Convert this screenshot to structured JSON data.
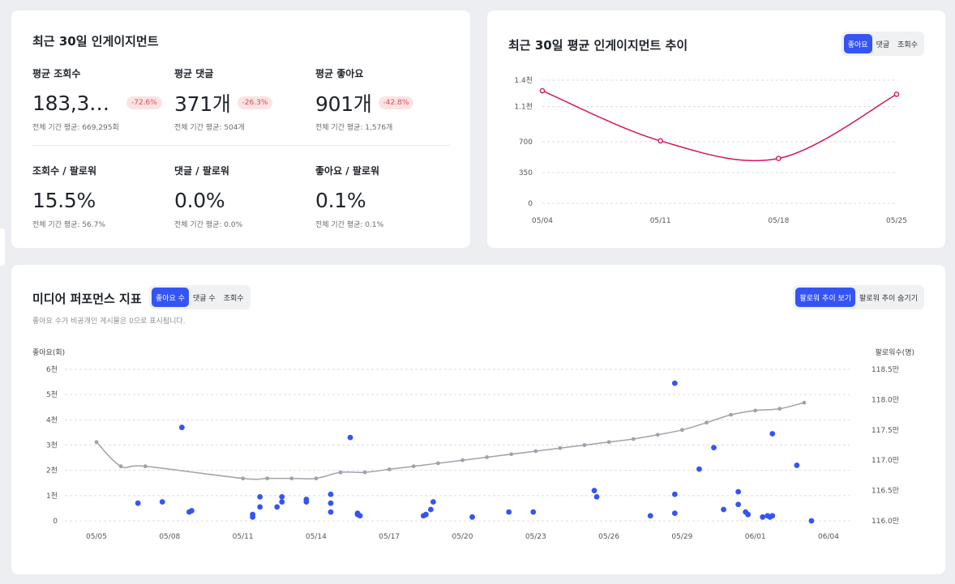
{
  "summary": {
    "title": "최근 30일 인게이지먼트",
    "metrics": [
      {
        "label": "평균 조회수",
        "value": "183,33…",
        "badge": "-72.6%",
        "sub": "전체 기간 평균: 669,295회"
      },
      {
        "label": "평균 댓글",
        "value": "371개",
        "badge": "-26.3%",
        "sub": "전체 기간 평균: 504개"
      },
      {
        "label": "평균 좋아요",
        "value": "901개",
        "badge": "-42.8%",
        "sub": "전체 기간 평균: 1,576개"
      },
      {
        "label": "조회수 / 팔로워",
        "value": "15.5%",
        "badge": "",
        "sub": "전체 기간 평균: 56.7%"
      },
      {
        "label": "댓글 / 팔로워",
        "value": "0.0%",
        "badge": "",
        "sub": "전체 기간 평균: 0.0%"
      },
      {
        "label": "좋아요 / 팔로워",
        "value": "0.1%",
        "badge": "",
        "sub": "전체 기간 평균: 0.1%"
      }
    ]
  },
  "trend": {
    "title": "최근 30일 평균 인게이지먼트 추이",
    "tabs": [
      "좋아요",
      "댓글",
      "조회수"
    ],
    "active_tab": 0
  },
  "media": {
    "title": "미디어 퍼포먼스 지표",
    "tabs": [
      "좋아요 수",
      "댓글 수",
      "조회수"
    ],
    "active_tab": 0,
    "note": "좋아요 수가 비공개인 게시물은 0으로 표시됩니다.",
    "follower_toggle": [
      "팔로워 추이 보기",
      "팔로워 추이 숨기기"
    ],
    "follower_active": 0,
    "left_axis_title": "좋아요(회)",
    "right_axis_title": "팔로워수(명)"
  },
  "colors": {
    "accent": "#3554f5",
    "trend_line": "#d6145f",
    "follower_line": "#9ea3ab",
    "negative": "#e2484d"
  },
  "chart_data": [
    {
      "type": "line",
      "title": "최근 30일 평균 인게이지먼트 추이",
      "categories": [
        "05/04",
        "05/11",
        "05/18",
        "05/25"
      ],
      "values": [
        1280,
        710,
        510,
        1240
      ],
      "y_ticks": [
        0,
        350,
        700,
        1100,
        1400
      ],
      "y_tick_labels": [
        "0",
        "350",
        "700",
        "1.1천",
        "1.4천"
      ],
      "ylim": [
        0,
        1400
      ],
      "grid": true
    },
    {
      "type": "scatter",
      "title": "미디어 퍼포먼스 지표",
      "ylabel": "좋아요(회)",
      "y2label": "팔로워수(명)",
      "x_ticks": [
        "05/05",
        "05/08",
        "05/11",
        "05/14",
        "05/17",
        "05/20",
        "05/23",
        "05/26",
        "05/29",
        "06/01",
        "06/04"
      ],
      "x_start_label": "05/05",
      "y_tick_labels": [
        "0",
        "1천",
        "2천",
        "3천",
        "4천",
        "5천",
        "6천"
      ],
      "ylim": [
        0,
        6000
      ],
      "y2_tick_labels": [
        "116.0만",
        "116.5만",
        "117.0만",
        "117.5만",
        "118.0만",
        "118.5만"
      ],
      "y2lim": [
        116.0,
        118.5
      ],
      "series": [
        {
          "name": "좋아요 수",
          "kind": "scatter",
          "points": [
            [
              1.7,
              700
            ],
            [
              2.7,
              750
            ],
            [
              3.5,
              3700
            ],
            [
              3.8,
              350
            ],
            [
              3.9,
              400
            ],
            [
              6.4,
              150
            ],
            [
              6.4,
              250
            ],
            [
              6.7,
              550
            ],
            [
              6.7,
              950
            ],
            [
              7.4,
              550
            ],
            [
              7.6,
              950
            ],
            [
              7.6,
              750
            ],
            [
              8.6,
              750
            ],
            [
              8.6,
              850
            ],
            [
              9.6,
              350
            ],
            [
              9.6,
              700
            ],
            [
              9.6,
              1050
            ],
            [
              10.4,
              3300
            ],
            [
              10.7,
              250
            ],
            [
              10.7,
              300
            ],
            [
              10.8,
              200
            ],
            [
              13.4,
              200
            ],
            [
              13.5,
              250
            ],
            [
              13.7,
              450
            ],
            [
              13.8,
              750
            ],
            [
              15.4,
              150
            ],
            [
              16.9,
              350
            ],
            [
              17.9,
              350
            ],
            [
              20.4,
              1200
            ],
            [
              20.5,
              950
            ],
            [
              22.7,
              200
            ],
            [
              23.7,
              300
            ],
            [
              23.7,
              1050
            ],
            [
              23.7,
              5450
            ],
            [
              24.7,
              2050
            ],
            [
              25.3,
              2900
            ],
            [
              25.7,
              450
            ],
            [
              26.3,
              650
            ],
            [
              26.3,
              1150
            ],
            [
              26.6,
              350
            ],
            [
              26.7,
              250
            ],
            [
              27.3,
              150
            ],
            [
              27.5,
              200
            ],
            [
              27.6,
              150
            ],
            [
              27.7,
              200
            ],
            [
              27.7,
              3450
            ],
            [
              28.7,
              2200
            ],
            [
              29.3,
              0
            ]
          ]
        },
        {
          "name": "팔로워수",
          "kind": "line",
          "points": [
            [
              0,
              117.3
            ],
            [
              1,
              116.9
            ],
            [
              2,
              116.9
            ],
            [
              6,
              116.7
            ],
            [
              7,
              116.7
            ],
            [
              8,
              116.7
            ],
            [
              9,
              116.7
            ],
            [
              10,
              116.8
            ],
            [
              11,
              116.8
            ],
            [
              12,
              116.85
            ],
            [
              13,
              116.9
            ],
            [
              14,
              116.95
            ],
            [
              15,
              117.0
            ],
            [
              16,
              117.05
            ],
            [
              17,
              117.1
            ],
            [
              18,
              117.15
            ],
            [
              19,
              117.2
            ],
            [
              20,
              117.25
            ],
            [
              21,
              117.3
            ],
            [
              22,
              117.35
            ],
            [
              23,
              117.42
            ],
            [
              24,
              117.5
            ],
            [
              25,
              117.62
            ],
            [
              26,
              117.75
            ],
            [
              27,
              117.82
            ],
            [
              28,
              117.85
            ],
            [
              29,
              117.95
            ]
          ]
        }
      ],
      "grid": true
    }
  ]
}
